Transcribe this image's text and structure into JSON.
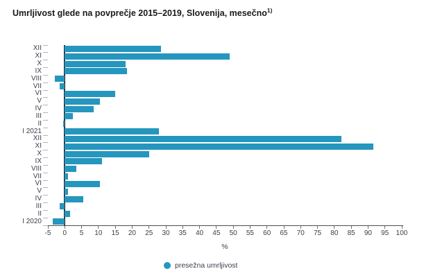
{
  "title": {
    "text": "Umrljivost glede na povprečje 2015–2019, Slovenija, mesečno",
    "superscript": "1)"
  },
  "legend": {
    "label": "presežna umrljivost"
  },
  "chart_data": {
    "type": "bar",
    "orientation": "horizontal",
    "title": "Umrljivost glede na povprečje 2015–2019, Slovenija, mesečno 1)",
    "categories": [
      "XII",
      "XI",
      "X",
      "IX",
      "VIII",
      "VII",
      "VI",
      "V",
      "IV",
      "III",
      "II",
      "I 2021",
      "XII",
      "XI",
      "X",
      "IX",
      "VIII",
      "VII",
      "VI",
      "V",
      "IV",
      "III",
      "II",
      "I 2020"
    ],
    "values": [
      28.5,
      49,
      18,
      18.5,
      -3,
      -1.5,
      15,
      10.5,
      8.5,
      2.5,
      -0.5,
      28,
      82,
      91.5,
      25,
      11,
      3.5,
      1,
      10.5,
      1,
      5.5,
      -1.5,
      1.5,
      -3.5
    ],
    "series_name": "presežna umrljivost",
    "xlabel": "%",
    "x_ticks": [
      -5,
      0,
      5,
      10,
      15,
      20,
      25,
      30,
      35,
      40,
      45,
      50,
      55,
      60,
      65,
      70,
      75,
      80,
      85,
      90,
      95,
      100
    ],
    "xlim": [
      -5,
      100
    ],
    "bar_color": "#2596be",
    "grid": false,
    "legend_position": "bottom-center"
  },
  "colors": {
    "bar": "#2596be",
    "axis_line": "#4c4c4c",
    "zero_line": "#2d2d2d",
    "x_tick": "#6e6e6e",
    "category_tick": "#b4b4b4",
    "label_text": "#3c3c4c",
    "title_text": "#1a1a1a"
  }
}
